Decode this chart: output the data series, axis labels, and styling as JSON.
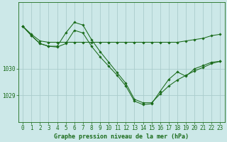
{
  "background_color": "#cce8e8",
  "grid_color": "#aacccc",
  "line_color": "#1a6b1a",
  "marker_color": "#1a6b1a",
  "xlabel": "Graphe pression niveau de la mer (hPa)",
  "xlabel_fontsize": 6.0,
  "tick_fontsize": 5.5,
  "series": [
    [
      1031.6,
      1031.3,
      1031.05,
      1031.0,
      1031.0,
      1031.0,
      1031.0,
      1031.0,
      1031.0,
      1031.0,
      1031.0,
      1031.0,
      1031.0,
      1031.0,
      1031.0,
      1031.0,
      1031.0,
      1031.0,
      1031.0,
      1031.05,
      1031.1,
      1031.15,
      1031.25,
      1031.3
    ],
    [
      1031.6,
      1031.25,
      1030.95,
      1030.85,
      1030.85,
      1031.35,
      1031.75,
      1031.65,
      1031.1,
      1030.65,
      1030.25,
      1029.85,
      1029.45,
      1028.85,
      1028.72,
      1028.72,
      1029.05,
      1029.35,
      1029.58,
      1029.75,
      1029.92,
      1030.05,
      1030.2,
      1030.28
    ],
    [
      1031.6,
      1031.25,
      1030.95,
      1030.85,
      1030.82,
      1030.95,
      1031.45,
      1031.35,
      1030.85,
      1030.45,
      1030.1,
      1029.75,
      1029.35,
      1028.78,
      1028.65,
      1028.68,
      1029.15,
      1029.6,
      1029.88,
      1029.72,
      1030.0,
      1030.12,
      1030.25,
      1030.28
    ]
  ],
  "ylim": [
    1028.0,
    1032.5
  ],
  "xlim": [
    -0.5,
    23.5
  ]
}
